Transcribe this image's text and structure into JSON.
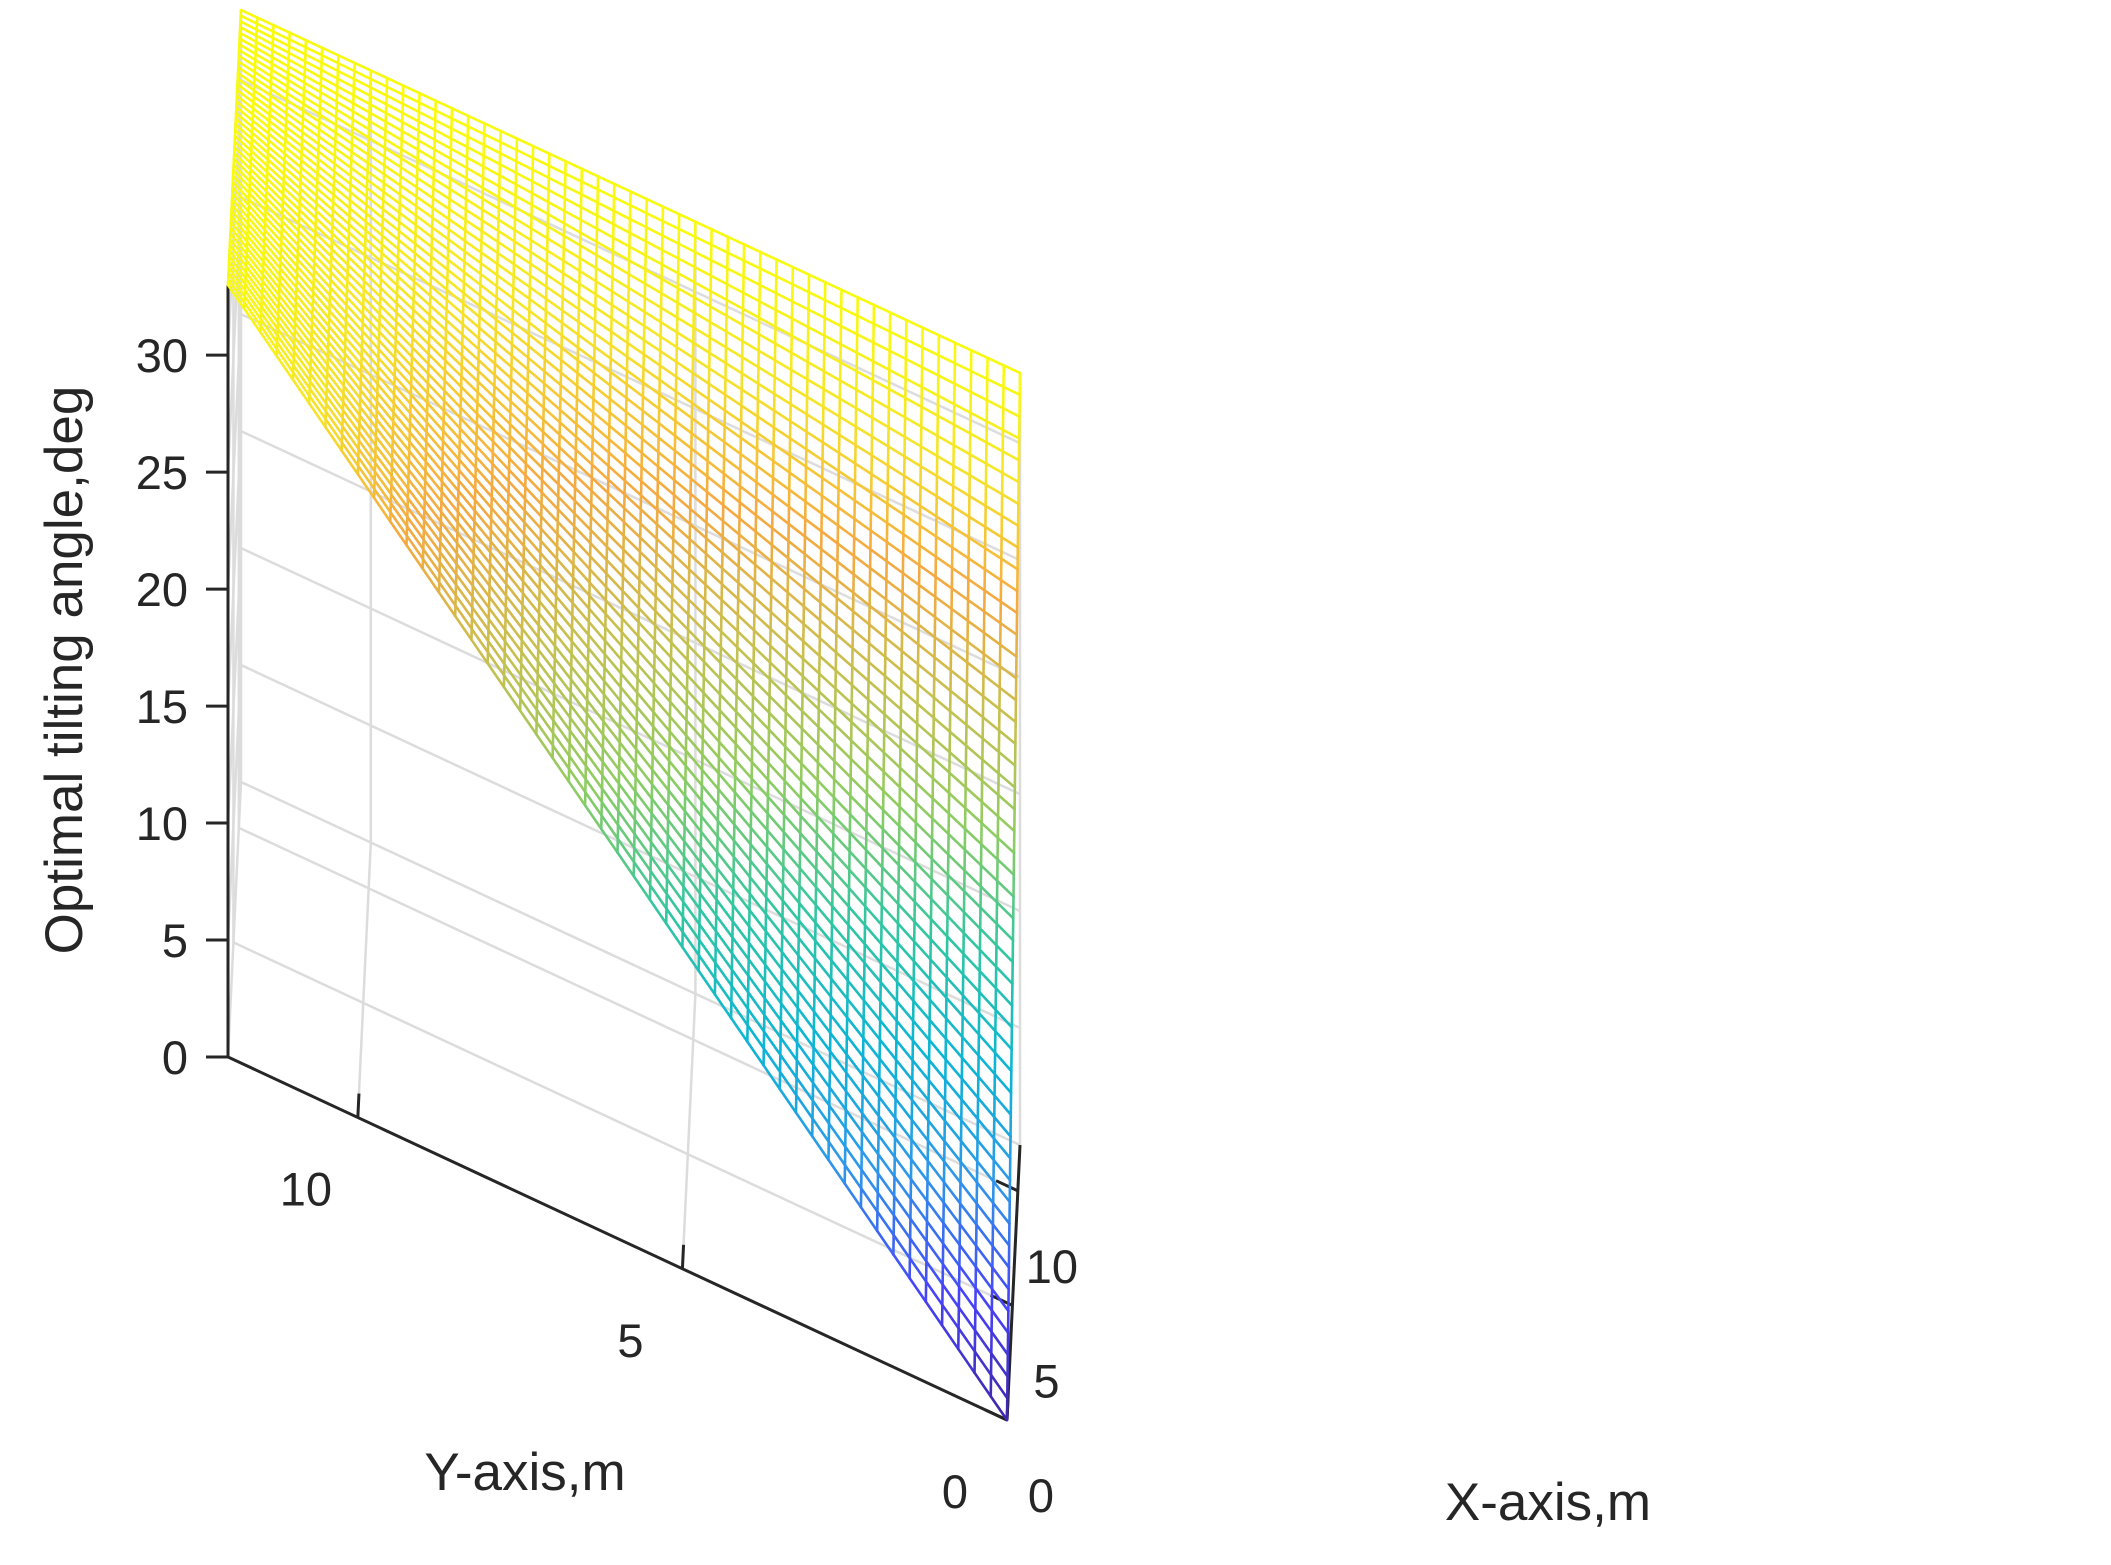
{
  "chart_data": {
    "type": "surface-mesh",
    "title": "",
    "xlabel": "X-axis,m",
    "ylabel": "Y-axis,m",
    "zlabel": "Optimal tilting angle,deg",
    "xlim": [
      0,
      12
    ],
    "ylim": [
      0,
      12
    ],
    "zlim": [
      0,
      33
    ],
    "x_ticks": [
      "0",
      "5",
      "10"
    ],
    "y_ticks": [
      "0",
      "5",
      "10"
    ],
    "z_ticks": [
      "0",
      "5",
      "10",
      "15",
      "20",
      "25",
      "30"
    ],
    "surface": {
      "x_range": [
        0,
        12
      ],
      "y_range": [
        0,
        12
      ],
      "grid_divisions": 48,
      "z_at_origin": 0,
      "z_at_x_max_y0": 33,
      "z_at_x0_y_max": 33,
      "z_at_x_max_y_max": 33
    },
    "grid": true,
    "colormap": "parula",
    "colors": [
      "#3e26a8",
      "#4743f8",
      "#2f97e9",
      "#0cb5d4",
      "#31c6a2",
      "#8fcc62",
      "#c7c04f",
      "#f5a941",
      "#f5e42b",
      "#f9fb0e"
    ]
  }
}
